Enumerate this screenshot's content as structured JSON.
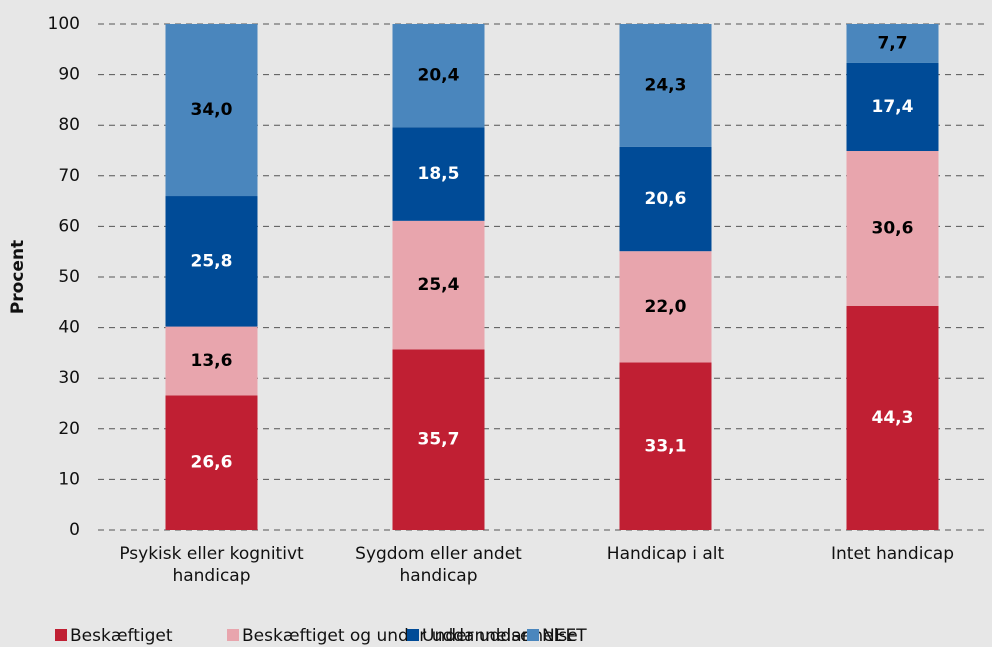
{
  "chart_data": {
    "type": "stacked_bar",
    "y_label": "Procent",
    "categories": [
      "Psykisk eller kognitivt handicap",
      "Sygdom eller andet handicap",
      "Handicap i alt",
      "Intet handicap"
    ],
    "series": [
      {
        "name": "Beskæftiget",
        "color": "#c01f33",
        "label_color": "#ffffff",
        "values": [
          26.6,
          35.7,
          33.1,
          44.3
        ],
        "value_labels": [
          "26,6",
          "35,7",
          "33,1",
          "44,3"
        ]
      },
      {
        "name": "Beskæftiget og under uddannelse",
        "color": "#e8a5ad",
        "label_color": "#000000",
        "values": [
          13.6,
          25.4,
          22.0,
          30.6
        ],
        "value_labels": [
          "13,6",
          "25,4",
          "22,0",
          "30,6"
        ]
      },
      {
        "name": "Under uddannelse",
        "color": "#004b97",
        "label_color": "#ffffff",
        "values": [
          25.8,
          18.5,
          20.6,
          17.4
        ],
        "value_labels": [
          "25,8",
          "18,5",
          "20,6",
          "17,4"
        ]
      },
      {
        "name": "NEET",
        "color": "#4a86bd",
        "label_color": "#000000",
        "values": [
          34.0,
          20.4,
          24.3,
          7.7
        ],
        "value_labels": [
          "34,0",
          "20,4",
          "24,3",
          "7,7"
        ]
      }
    ],
    "ylim": [
      0,
      100
    ],
    "yticks": [
      0,
      10,
      20,
      30,
      40,
      50,
      60,
      70,
      80,
      90,
      100
    ],
    "grid": true,
    "legend": "bottom"
  }
}
